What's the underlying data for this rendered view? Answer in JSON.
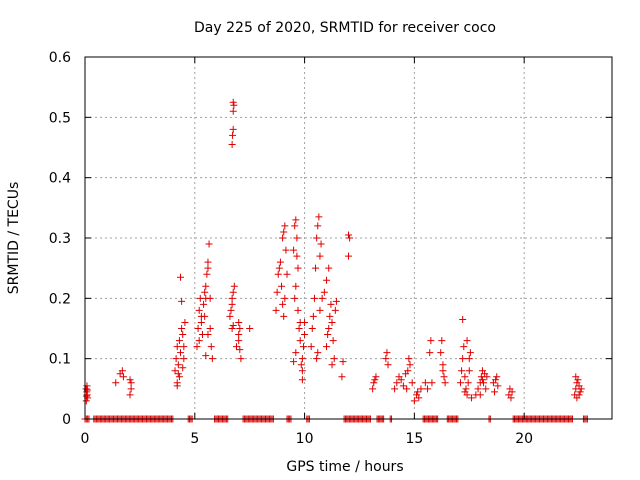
{
  "chart_data": {
    "type": "scatter",
    "title": "Day 225 of 2020, SRMTID for receiver coco",
    "xlabel": "GPS time / hours",
    "ylabel": "SRMTID / TECUs",
    "xlim": [
      0,
      24
    ],
    "ylim": [
      0,
      0.6
    ],
    "x_ticks": [
      {
        "value": 0,
        "label": "0"
      },
      {
        "value": 5,
        "label": "5"
      },
      {
        "value": 10,
        "label": "10"
      },
      {
        "value": 15,
        "label": "15"
      },
      {
        "value": 20,
        "label": "20"
      }
    ],
    "y_ticks": [
      {
        "value": 0,
        "label": "0"
      },
      {
        "value": 0.1,
        "label": "0.1"
      },
      {
        "value": 0.2,
        "label": "0.2"
      },
      {
        "value": 0.3,
        "label": "0.3"
      },
      {
        "value": 0.4,
        "label": "0.4"
      },
      {
        "value": 0.5,
        "label": "0.5"
      },
      {
        "value": 0.6,
        "label": "0.6"
      }
    ],
    "grid": true,
    "marker": "plus",
    "color": "#e00000",
    "series": [
      {
        "name": "SRMTID",
        "points": [
          [
            0.05,
            0.05
          ],
          [
            0.08,
            0.045
          ],
          [
            0.1,
            0.04
          ],
          [
            0.12,
            0.035
          ],
          [
            0.06,
            0.03
          ],
          [
            0.09,
            0.055
          ],
          [
            0.11,
            0.048
          ],
          [
            0.07,
            0.038
          ],
          [
            1.4,
            0.06
          ],
          [
            1.6,
            0.075
          ],
          [
            1.7,
            0.08
          ],
          [
            1.75,
            0.07
          ],
          [
            2.05,
            0.065
          ],
          [
            2.1,
            0.05
          ],
          [
            2.1,
            0.06
          ],
          [
            2.05,
            0.04
          ],
          [
            4.1,
            0.08
          ],
          [
            4.15,
            0.1
          ],
          [
            4.2,
            0.12
          ],
          [
            4.25,
            0.09
          ],
          [
            4.3,
            0.07
          ],
          [
            4.3,
            0.13
          ],
          [
            4.35,
            0.11
          ],
          [
            4.2,
            0.06
          ],
          [
            4.4,
            0.15
          ],
          [
            4.45,
            0.14
          ],
          [
            4.5,
            0.12
          ],
          [
            4.5,
            0.1
          ],
          [
            4.55,
            0.16
          ],
          [
            4.4,
            0.195
          ],
          [
            4.35,
            0.235
          ],
          [
            4.2,
            0.055
          ],
          [
            4.25,
            0.075
          ],
          [
            4.45,
            0.085
          ],
          [
            5.1,
            0.12
          ],
          [
            5.15,
            0.15
          ],
          [
            5.2,
            0.18
          ],
          [
            5.25,
            0.2
          ],
          [
            5.3,
            0.16
          ],
          [
            5.35,
            0.14
          ],
          [
            5.4,
            0.19
          ],
          [
            5.45,
            0.17
          ],
          [
            5.5,
            0.2
          ],
          [
            5.5,
            0.22
          ],
          [
            5.55,
            0.24
          ],
          [
            5.6,
            0.25
          ],
          [
            5.6,
            0.26
          ],
          [
            5.65,
            0.29
          ],
          [
            5.7,
            0.2
          ],
          [
            5.7,
            0.15
          ],
          [
            5.75,
            0.12
          ],
          [
            5.8,
            0.1
          ],
          [
            5.2,
            0.13
          ],
          [
            5.3,
            0.17
          ],
          [
            5.45,
            0.21
          ],
          [
            5.6,
            0.14
          ],
          [
            5.5,
            0.105
          ],
          [
            6.6,
            0.17
          ],
          [
            6.65,
            0.18
          ],
          [
            6.7,
            0.19
          ],
          [
            6.7,
            0.2
          ],
          [
            6.75,
            0.21
          ],
          [
            6.8,
            0.22
          ],
          [
            6.7,
            0.15
          ],
          [
            6.75,
            0.155
          ],
          [
            6.7,
            0.455
          ],
          [
            6.72,
            0.47
          ],
          [
            6.75,
            0.48
          ],
          [
            6.75,
            0.51
          ],
          [
            6.78,
            0.52
          ],
          [
            6.75,
            0.525
          ],
          [
            6.9,
            0.12
          ],
          [
            7.0,
            0.13
          ],
          [
            7.0,
            0.14
          ],
          [
            7.05,
            0.15
          ],
          [
            7.0,
            0.16
          ],
          [
            7.1,
            0.1
          ],
          [
            7.05,
            0.115
          ],
          [
            7.5,
            0.15
          ],
          [
            8.7,
            0.18
          ],
          [
            8.75,
            0.21
          ],
          [
            8.8,
            0.24
          ],
          [
            8.85,
            0.25
          ],
          [
            8.9,
            0.26
          ],
          [
            8.95,
            0.22
          ],
          [
            9.0,
            0.3
          ],
          [
            9.05,
            0.31
          ],
          [
            9.1,
            0.32
          ],
          [
            9.0,
            0.19
          ],
          [
            9.05,
            0.17
          ],
          [
            9.1,
            0.2
          ],
          [
            9.2,
            0.24
          ],
          [
            9.15,
            0.28
          ],
          [
            9.5,
            0.28
          ],
          [
            9.55,
            0.32
          ],
          [
            9.6,
            0.33
          ],
          [
            9.65,
            0.3
          ],
          [
            9.65,
            0.27
          ],
          [
            9.7,
            0.25
          ],
          [
            9.6,
            0.22
          ],
          [
            9.55,
            0.2
          ],
          [
            9.7,
            0.18
          ],
          [
            9.75,
            0.15
          ],
          [
            9.8,
            0.13
          ],
          [
            9.8,
            0.16
          ],
          [
            9.9,
            0.1
          ],
          [
            9.9,
            0.08
          ],
          [
            9.95,
            0.12
          ],
          [
            10.0,
            0.14
          ],
          [
            10.0,
            0.16
          ],
          [
            9.9,
            0.065
          ],
          [
            9.6,
            0.11
          ],
          [
            9.5,
            0.095
          ],
          [
            9.85,
            0.09
          ],
          [
            10.3,
            0.12
          ],
          [
            10.35,
            0.15
          ],
          [
            10.4,
            0.17
          ],
          [
            10.45,
            0.2
          ],
          [
            10.5,
            0.25
          ],
          [
            10.55,
            0.3
          ],
          [
            10.6,
            0.32
          ],
          [
            10.65,
            0.335
          ],
          [
            10.7,
            0.27
          ],
          [
            10.75,
            0.29
          ],
          [
            10.6,
            0.11
          ],
          [
            10.55,
            0.1
          ],
          [
            10.7,
            0.18
          ],
          [
            10.8,
            0.2
          ],
          [
            11.0,
            0.12
          ],
          [
            11.05,
            0.14
          ],
          [
            11.1,
            0.15
          ],
          [
            11.15,
            0.17
          ],
          [
            11.2,
            0.19
          ],
          [
            11.25,
            0.16
          ],
          [
            11.3,
            0.13
          ],
          [
            11.35,
            0.1
          ],
          [
            11.25,
            0.09
          ],
          [
            10.9,
            0.21
          ],
          [
            11.0,
            0.23
          ],
          [
            11.1,
            0.25
          ],
          [
            11.4,
            0.18
          ],
          [
            11.45,
            0.195
          ],
          [
            11.7,
            0.07
          ],
          [
            11.75,
            0.095
          ],
          [
            12.0,
            0.27
          ],
          [
            12.05,
            0.3
          ],
          [
            12.0,
            0.305
          ],
          [
            13.1,
            0.05
          ],
          [
            13.15,
            0.06
          ],
          [
            13.2,
            0.065
          ],
          [
            13.25,
            0.07
          ],
          [
            13.7,
            0.1
          ],
          [
            13.75,
            0.11
          ],
          [
            13.8,
            0.09
          ],
          [
            14.1,
            0.05
          ],
          [
            14.2,
            0.06
          ],
          [
            14.3,
            0.07
          ],
          [
            14.4,
            0.065
          ],
          [
            14.5,
            0.055
          ],
          [
            14.6,
            0.075
          ],
          [
            14.7,
            0.08
          ],
          [
            14.8,
            0.09
          ],
          [
            14.75,
            0.1
          ],
          [
            14.65,
            0.05
          ],
          [
            14.9,
            0.06
          ],
          [
            15.0,
            0.03
          ],
          [
            15.1,
            0.04
          ],
          [
            15.15,
            0.045
          ],
          [
            15.2,
            0.035
          ],
          [
            15.3,
            0.05
          ],
          [
            15.5,
            0.06
          ],
          [
            15.6,
            0.05
          ],
          [
            15.8,
            0.06
          ],
          [
            15.7,
            0.11
          ],
          [
            15.75,
            0.13
          ],
          [
            16.2,
            0.11
          ],
          [
            16.25,
            0.13
          ],
          [
            16.3,
            0.08
          ],
          [
            16.35,
            0.07
          ],
          [
            16.4,
            0.06
          ],
          [
            16.3,
            0.09
          ],
          [
            17.1,
            0.06
          ],
          [
            17.15,
            0.08
          ],
          [
            17.2,
            0.1
          ],
          [
            17.25,
            0.12
          ],
          [
            17.2,
            0.165
          ],
          [
            17.3,
            0.07
          ],
          [
            17.35,
            0.05
          ],
          [
            17.4,
            0.04
          ],
          [
            17.45,
            0.06
          ],
          [
            17.5,
            0.1
          ],
          [
            17.55,
            0.11
          ],
          [
            17.4,
            0.13
          ],
          [
            17.5,
            0.08
          ],
          [
            17.6,
            0.035
          ],
          [
            17.3,
            0.045
          ],
          [
            17.8,
            0.04
          ],
          [
            17.9,
            0.05
          ],
          [
            18.0,
            0.06
          ],
          [
            18.05,
            0.07
          ],
          [
            18.1,
            0.08
          ],
          [
            18.2,
            0.075
          ],
          [
            18.3,
            0.07
          ],
          [
            18.15,
            0.06
          ],
          [
            18.25,
            0.05
          ],
          [
            18.0,
            0.04
          ],
          [
            18.1,
            0.065
          ],
          [
            18.6,
            0.06
          ],
          [
            18.7,
            0.065
          ],
          [
            18.8,
            0.055
          ],
          [
            18.75,
            0.07
          ],
          [
            18.65,
            0.045
          ],
          [
            19.3,
            0.04
          ],
          [
            19.4,
            0.035
          ],
          [
            19.35,
            0.05
          ],
          [
            19.45,
            0.045
          ],
          [
            22.3,
            0.04
          ],
          [
            22.35,
            0.05
          ],
          [
            22.4,
            0.06
          ],
          [
            22.45,
            0.065
          ],
          [
            22.5,
            0.055
          ],
          [
            22.55,
            0.045
          ],
          [
            22.4,
            0.035
          ],
          [
            22.35,
            0.07
          ],
          [
            22.6,
            0.05
          ],
          [
            22.5,
            0.04
          ]
        ],
        "zero_segments": [
          [
            0.0,
            0.2
          ],
          [
            0.4,
            4.0
          ],
          [
            4.7,
            4.9
          ],
          [
            5.9,
            6.5
          ],
          [
            7.2,
            8.6
          ],
          [
            9.2,
            9.4
          ],
          [
            10.1,
            10.25
          ],
          [
            11.8,
            13.0
          ],
          [
            13.3,
            13.6
          ],
          [
            13.9,
            14.0
          ],
          [
            15.4,
            16.1
          ],
          [
            16.5,
            17.0
          ],
          [
            18.4,
            18.5
          ],
          [
            19.5,
            22.2
          ],
          [
            22.7,
            22.9
          ]
        ]
      }
    ]
  }
}
